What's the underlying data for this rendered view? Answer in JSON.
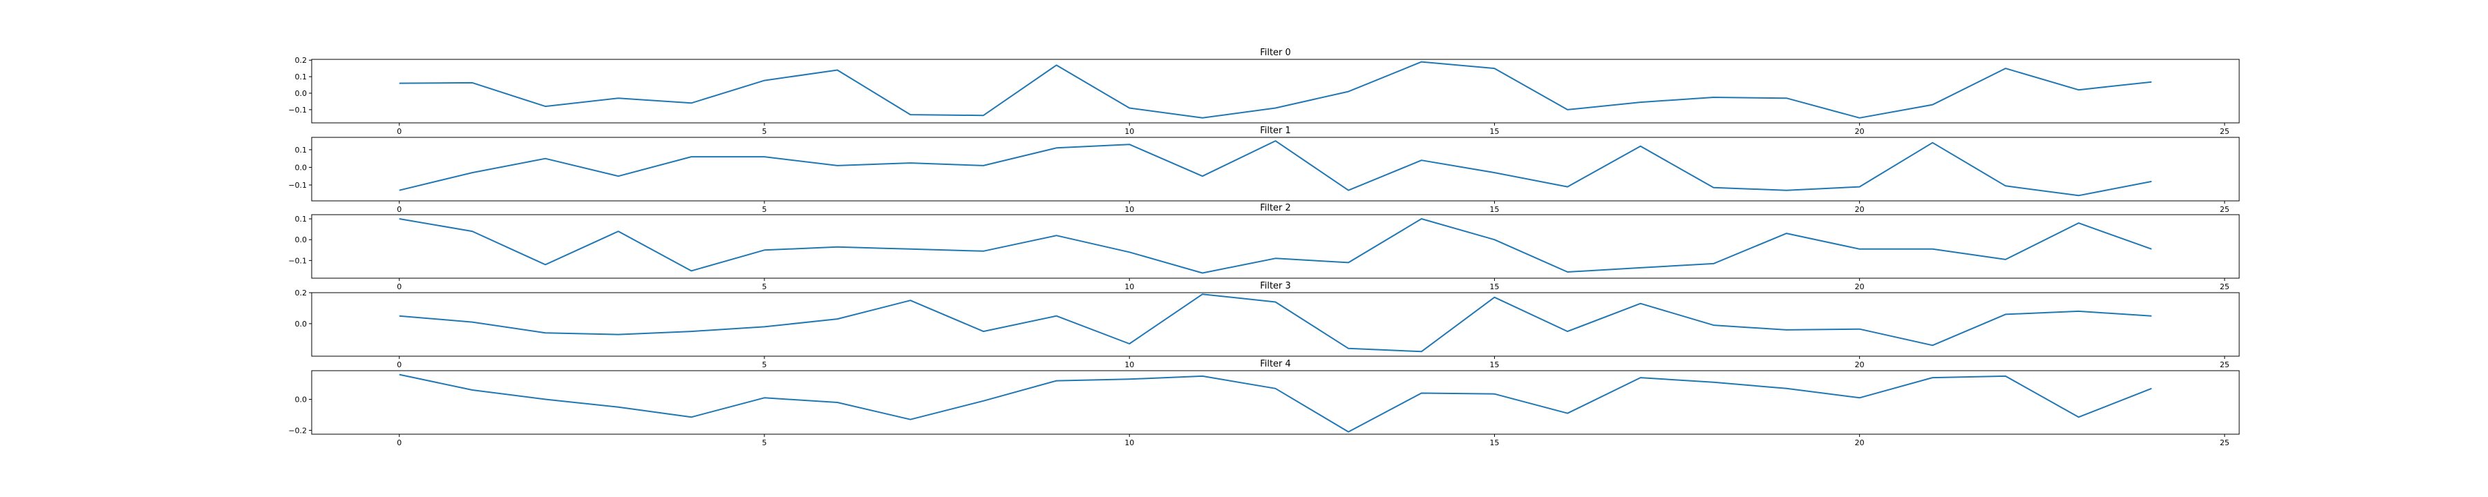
{
  "chart_data": [
    {
      "type": "line",
      "title": "Filter 0",
      "x": [
        0,
        1,
        2,
        3,
        4,
        5,
        6,
        7,
        8,
        9,
        10,
        11,
        12,
        13,
        14,
        15,
        16,
        17,
        18,
        19,
        20,
        21,
        22,
        23,
        24
      ],
      "values": [
        0.06,
        0.063,
        -0.08,
        -0.03,
        -0.06,
        0.077,
        0.14,
        -0.13,
        -0.135,
        0.17,
        -0.09,
        -0.15,
        -0.09,
        0.01,
        0.19,
        0.15,
        -0.1,
        -0.055,
        -0.025,
        -0.03,
        -0.15,
        -0.07,
        0.15,
        0.02,
        0.068
      ],
      "xticks": [
        0,
        5,
        10,
        15,
        20,
        25
      ],
      "yticks": [
        0.2,
        0.1,
        0.0,
        -0.1
      ],
      "ytick_labels": [
        "0.2",
        "0.1",
        "0.0",
        "−0.1"
      ],
      "xlim": [
        -1.2,
        25.2
      ],
      "ylim": [
        -0.18,
        0.205
      ],
      "color": "#1f77b4"
    },
    {
      "type": "line",
      "title": "Filter 1",
      "x": [
        0,
        1,
        2,
        3,
        4,
        5,
        6,
        7,
        8,
        9,
        10,
        11,
        12,
        13,
        14,
        15,
        16,
        17,
        18,
        19,
        20,
        21,
        22,
        23,
        24
      ],
      "values": [
        -0.13,
        -0.03,
        0.05,
        -0.05,
        0.06,
        0.06,
        0.01,
        0.025,
        0.01,
        0.11,
        0.13,
        -0.05,
        0.15,
        -0.13,
        0.04,
        -0.03,
        -0.11,
        0.12,
        -0.115,
        -0.13,
        -0.11,
        0.14,
        -0.105,
        -0.16,
        -0.08
      ],
      "xticks": [
        0,
        5,
        10,
        15,
        20,
        25
      ],
      "yticks": [
        0.1,
        0.0,
        -0.1
      ],
      "ytick_labels": [
        "0.1",
        "0.0",
        "−0.1"
      ],
      "xlim": [
        -1.2,
        25.2
      ],
      "ylim": [
        -0.19,
        0.17
      ],
      "color": "#1f77b4"
    },
    {
      "type": "line",
      "title": "Filter 2",
      "x": [
        0,
        1,
        2,
        3,
        4,
        5,
        6,
        7,
        8,
        9,
        10,
        11,
        12,
        13,
        14,
        15,
        16,
        17,
        18,
        19,
        20,
        21,
        22,
        23,
        24
      ],
      "values": [
        0.1,
        0.04,
        -0.12,
        0.04,
        -0.15,
        -0.05,
        -0.035,
        -0.045,
        -0.055,
        0.02,
        -0.06,
        -0.16,
        -0.09,
        -0.11,
        0.1,
        0.0,
        -0.155,
        -0.135,
        -0.115,
        0.03,
        -0.045,
        -0.045,
        -0.095,
        0.08,
        -0.045
      ],
      "xticks": [
        0,
        5,
        10,
        15,
        20,
        25
      ],
      "yticks": [
        0.1,
        0.0,
        -0.1
      ],
      "ytick_labels": [
        "0.1",
        "0.0",
        "−0.1"
      ],
      "xlim": [
        -1.2,
        25.2
      ],
      "ylim": [
        -0.185,
        0.12
      ],
      "color": "#1f77b4"
    },
    {
      "type": "line",
      "title": "Filter 3",
      "x": [
        0,
        1,
        2,
        3,
        4,
        5,
        6,
        7,
        8,
        9,
        10,
        11,
        12,
        13,
        14,
        15,
        16,
        17,
        18,
        19,
        20,
        21,
        22,
        23,
        24
      ],
      "values": [
        0.05,
        0.01,
        -0.06,
        -0.07,
        -0.05,
        -0.02,
        0.03,
        0.15,
        -0.05,
        0.05,
        -0.13,
        0.19,
        0.14,
        -0.16,
        -0.18,
        0.17,
        -0.05,
        0.13,
        -0.01,
        -0.04,
        -0.035,
        -0.14,
        0.06,
        0.08,
        0.05
      ],
      "xticks": [
        0,
        5,
        10,
        15,
        20,
        25
      ],
      "yticks": [
        0.2,
        0.0
      ],
      "ytick_labels": [
        "0.2",
        "0.0"
      ],
      "xlim": [
        -1.2,
        25.2
      ],
      "ylim": [
        -0.21,
        0.2
      ],
      "color": "#1f77b4"
    },
    {
      "type": "line",
      "title": "Filter 4",
      "x": [
        0,
        1,
        2,
        3,
        4,
        5,
        6,
        7,
        8,
        9,
        10,
        11,
        12,
        13,
        14,
        15,
        16,
        17,
        18,
        19,
        20,
        21,
        22,
        23,
        24
      ],
      "values": [
        0.16,
        0.06,
        0.0,
        -0.05,
        -0.115,
        0.01,
        -0.02,
        -0.13,
        -0.01,
        0.12,
        0.13,
        0.15,
        0.07,
        -0.21,
        0.04,
        0.035,
        -0.09,
        0.14,
        0.11,
        0.07,
        0.01,
        0.14,
        0.15,
        -0.115,
        0.07
      ],
      "xticks": [
        0,
        5,
        10,
        15,
        20,
        25
      ],
      "yticks": [
        0.0,
        -0.2
      ],
      "ytick_labels": [
        "0.0",
        "−0.2"
      ],
      "xlim": [
        -1.2,
        25.2
      ],
      "ylim": [
        -0.225,
        0.185
      ],
      "color": "#1f77b4"
    }
  ]
}
